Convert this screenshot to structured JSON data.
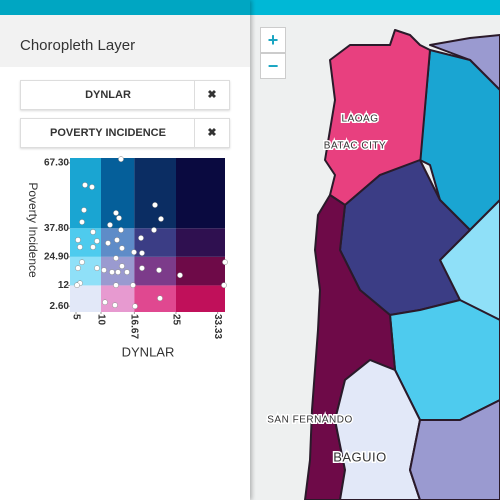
{
  "panel": {
    "title": "Choropleth Layer",
    "fields": [
      {
        "label": "DYNLAR",
        "remove": "✖"
      },
      {
        "label": "POVERTY INCIDENCE",
        "remove": "✖"
      }
    ]
  },
  "legend": {
    "type": "scatter",
    "x_label": "DYNLAR",
    "y_label": "Poverty Incidence",
    "x": [
      14.0,
      6.8,
      8.2,
      6.6,
      6.2,
      5.4,
      5.8,
      8.4,
      9.2,
      8.4,
      6.2,
      5.4,
      9.2,
      10.6,
      12.2,
      13.4,
      15.2,
      14.2,
      13.0,
      13.6,
      14.0,
      13.2,
      11.4,
      14.2,
      13.0,
      16.6,
      18.0,
      20.8,
      22.0,
      20.6,
      18.2,
      18.2,
      21.6,
      25.8,
      34.8,
      34.6,
      16.4,
      13.0,
      10.8,
      12.8,
      16.8,
      21.8,
      5.8,
      5.2,
      11.8
    ],
    "y": [
      69.0,
      57.3,
      56.4,
      46.0,
      40.6,
      32.5,
      29.3,
      36.1,
      32.0,
      29.3,
      22.5,
      19.8,
      19.8,
      18.9,
      18.0,
      18.0,
      18.0,
      20.7,
      44.7,
      42.4,
      37.0,
      32.5,
      31.1,
      28.8,
      24.3,
      27.0,
      33.4,
      48.3,
      42.0,
      37.0,
      26.6,
      19.8,
      18.9,
      16.6,
      22.5,
      12.1,
      12.1,
      12.1,
      4.4,
      3.1,
      2.6,
      6.2,
      13.0,
      12.1,
      39.3
    ],
    "xlim": [
      3.8,
      34.8
    ],
    "ylim": [
      0,
      69.5
    ],
    "xticks": [
      5,
      10,
      16.67,
      25,
      33.33
    ],
    "yticks": [
      {
        "value": 2.6,
        "label": "2.60"
      },
      12,
      {
        "value": 24.9,
        "label": "24.90"
      },
      {
        "value": 37.8,
        "label": "37.80"
      },
      {
        "value": 67.3,
        "label": "67.30"
      }
    ],
    "point_color": "#ffffff",
    "cell_colors": [
      [
        "#e2e8f8",
        "#e79ad0",
        "#e04890",
        "#c0105a"
      ],
      [
        "#8fe0f8",
        "#9a9ad0",
        "#7c3b8a",
        "#6e0a48"
      ],
      [
        "#4ecbee",
        "#5e8cc8",
        "#3b3d85",
        "#2f1050"
      ],
      [
        "#1aa5d2",
        "#055f9a",
        "#0b2d63",
        "#0a0a40"
      ]
    ]
  },
  "map": {
    "zoom_in": "+",
    "zoom_out": "−",
    "labels": [
      "LAOAG",
      "BATAC CITY",
      "SAN FERNANDO",
      "BAGUIO"
    ]
  }
}
